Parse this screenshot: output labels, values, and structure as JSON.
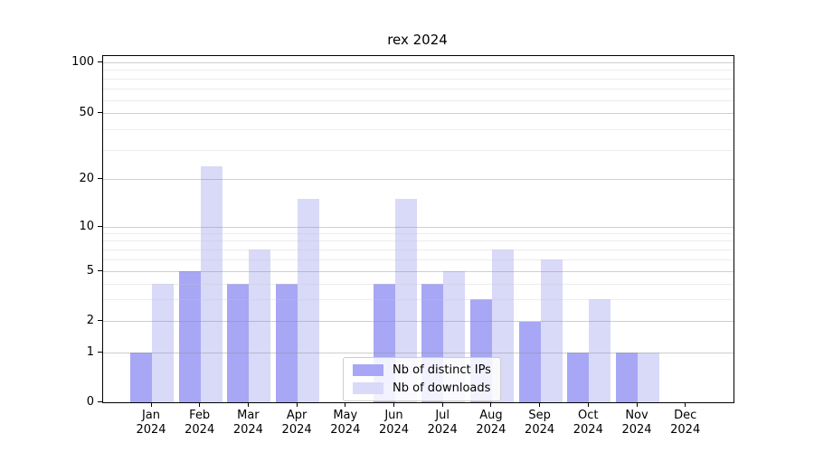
{
  "chart_data": {
    "type": "bar",
    "title": "rex 2024",
    "categories": [
      "Jan 2024",
      "Feb 2024",
      "Mar 2024",
      "Apr 2024",
      "May 2024",
      "Jun 2024",
      "Jul 2024",
      "Aug 2024",
      "Sep 2024",
      "Oct 2024",
      "Nov 2024",
      "Dec 2024"
    ],
    "x_tick_months": [
      "Jan",
      "Feb",
      "Mar",
      "Apr",
      "May",
      "Jun",
      "Jul",
      "Aug",
      "Sep",
      "Oct",
      "Nov",
      "Dec"
    ],
    "x_tick_year": "2024",
    "series": [
      {
        "name": "Nb of distinct IPs",
        "color": "#a7a7f5",
        "values": [
          1,
          5,
          4,
          4,
          0,
          4,
          4,
          3,
          2,
          1,
          1,
          0
        ]
      },
      {
        "name": "Nb of downloads",
        "color": "#d9d9f8",
        "values": [
          4,
          24,
          7,
          15,
          0,
          15,
          5,
          7,
          6,
          3,
          1,
          0
        ]
      }
    ],
    "y_axis": {
      "scale": "symlog",
      "ticks": [
        0,
        1,
        2,
        5,
        10,
        20,
        50,
        100
      ],
      "minor_ticks": [
        3,
        4,
        6,
        7,
        8,
        9,
        30,
        40,
        60,
        70,
        80,
        90
      ],
      "ylim": [
        0,
        110
      ],
      "tick_fractions": [
        [
          0,
          1.0
        ],
        [
          1,
          0.8572
        ],
        [
          2,
          0.7676
        ],
        [
          5,
          0.6227
        ],
        [
          10,
          0.4935
        ],
        [
          20,
          0.3564
        ],
        [
          50,
          0.1671
        ],
        [
          100,
          0.0183
        ]
      ]
    },
    "grid": "horizontal major+minor",
    "legend": {
      "position": "lower-center-inside",
      "entries": [
        "Nb of distinct IPs",
        "Nb of downloads"
      ]
    },
    "colors": {
      "bar_dark": "#a7a7f5",
      "bar_light": "#d9d9f8",
      "grid_major": "#c9c9c9",
      "grid_minor": "#ececec",
      "axis": "#000000",
      "background": "#ffffff"
    }
  }
}
